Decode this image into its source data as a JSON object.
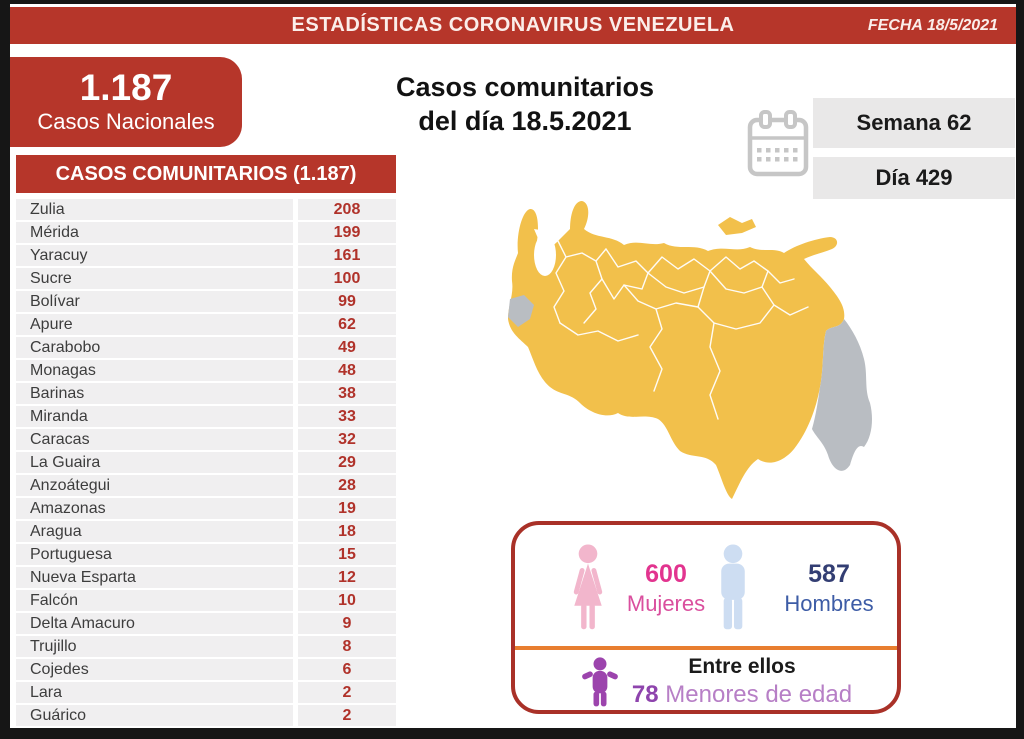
{
  "header": {
    "title": "ESTADÍSTICAS CORONAVIRUS VENEZUELA",
    "date_label": "FECHA 18/5/2021"
  },
  "national": {
    "value": "1.187",
    "label": "Casos Nacionales"
  },
  "main_title": {
    "line1": "Casos comunitarios",
    "line2": "del día 18.5.2021"
  },
  "period": {
    "week": "Semana 62",
    "day": "Día 429"
  },
  "cases_table": {
    "header": "CASOS COMUNITARIOS (1.187)",
    "rows": [
      {
        "state": "Zulia",
        "cases": "208"
      },
      {
        "state": "Mérida",
        "cases": "199"
      },
      {
        "state": "Yaracuy",
        "cases": "161"
      },
      {
        "state": "Sucre",
        "cases": "100"
      },
      {
        "state": "Bolívar",
        "cases": "99"
      },
      {
        "state": "Apure",
        "cases": "62"
      },
      {
        "state": "Carabobo",
        "cases": "49"
      },
      {
        "state": "Monagas",
        "cases": "48"
      },
      {
        "state": "Barinas",
        "cases": "38"
      },
      {
        "state": "Miranda",
        "cases": "33"
      },
      {
        "state": "Caracas",
        "cases": "32"
      },
      {
        "state": "La Guaira",
        "cases": "29"
      },
      {
        "state": "Anzoátegui",
        "cases": "28"
      },
      {
        "state": "Amazonas",
        "cases": "19"
      },
      {
        "state": "Aragua",
        "cases": "18"
      },
      {
        "state": "Portuguesa",
        "cases": "15"
      },
      {
        "state": "Nueva Esparta",
        "cases": "12"
      },
      {
        "state": "Falcón",
        "cases": "10"
      },
      {
        "state": "Delta Amacuro",
        "cases": "9"
      },
      {
        "state": "Trujillo",
        "cases": "8"
      },
      {
        "state": "Cojedes",
        "cases": "6"
      },
      {
        "state": "Lara",
        "cases": "2"
      },
      {
        "state": "Guárico",
        "cases": "2"
      }
    ]
  },
  "demographics": {
    "women": {
      "value": "600",
      "label": "Mujeres"
    },
    "men": {
      "value": "587",
      "label": "Hombres"
    },
    "minors": {
      "intro": "Entre ellos",
      "value": "78",
      "label": "Menores de edad"
    }
  },
  "map": {
    "region": "Venezuela",
    "highlight_color": "#f2c04b",
    "no_data_color": "#b9bdc2"
  },
  "colors": {
    "accent_red": "#b6362a",
    "number_red": "#b0322a",
    "row_gray": "#f0eff0",
    "period_gray": "#e9e8e8",
    "panel_border_red": "#a93128",
    "divider_orange": "#e87e2f",
    "women_pink": "#e2348f",
    "men_blue": "#333e73",
    "minors_purple": "#8e44ad"
  },
  "chart_data": {
    "type": "table",
    "title": "CASOS COMUNITARIOS (1.187)",
    "categories": [
      "Zulia",
      "Mérida",
      "Yaracuy",
      "Sucre",
      "Bolívar",
      "Apure",
      "Carabobo",
      "Monagas",
      "Barinas",
      "Miranda",
      "Caracas",
      "La Guaira",
      "Anzoátegui",
      "Amazonas",
      "Aragua",
      "Portuguesa",
      "Nueva Esparta",
      "Falcón",
      "Delta Amacuro",
      "Trujillo",
      "Cojedes",
      "Lara",
      "Guárico"
    ],
    "values": [
      208,
      199,
      161,
      100,
      99,
      62,
      49,
      48,
      38,
      33,
      32,
      29,
      28,
      19,
      18,
      15,
      12,
      10,
      9,
      8,
      6,
      2,
      2
    ],
    "totals": {
      "national_cases": 1187,
      "community_cases": 1187,
      "women": 600,
      "men": 587,
      "minors": 78
    },
    "date": "18.5.2021",
    "week": 62,
    "day": 429
  }
}
